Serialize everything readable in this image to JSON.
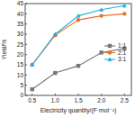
{
  "chart_data": {
    "type": "line",
    "x_label": "Electricity quantity/(F·mol⁻¹)",
    "y_label": "Yield/%",
    "x": [
      0.5,
      1.0,
      1.5,
      2.0,
      2.5
    ],
    "series": [
      {
        "name": "1:1",
        "color": "#777777",
        "marker": "square",
        "values": [
          3,
          11,
          14.5,
          21,
          23
        ]
      },
      {
        "name": "2:1",
        "color": "#e8702a",
        "marker": "circle",
        "values": [
          15,
          29.5,
          37,
          39,
          40
        ]
      },
      {
        "name": "3:1",
        "color": "#1fb0e0",
        "marker": "triangle",
        "values": [
          15,
          30,
          39,
          42,
          44
        ]
      }
    ],
    "xlim": [
      0.35,
      2.65
    ],
    "xticks": [
      {
        "value": 0.5,
        "label": "0.5"
      },
      {
        "value": 1.0,
        "label": "1.0"
      },
      {
        "value": 1.5,
        "label": "1.5"
      },
      {
        "value": 2.0,
        "label": "2.0"
      },
      {
        "value": 2.5,
        "label": "2.5"
      }
    ],
    "ylim": [
      0,
      45
    ],
    "yticks": [
      0,
      5,
      10,
      15,
      20,
      25,
      30,
      35,
      40,
      45
    ],
    "grid": false,
    "legend": "right"
  }
}
